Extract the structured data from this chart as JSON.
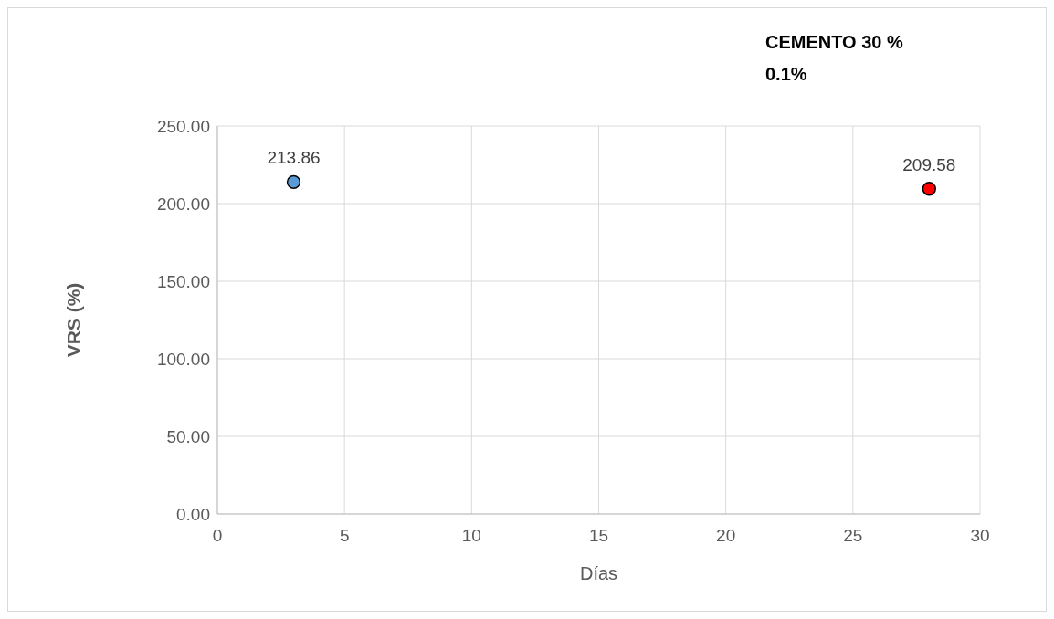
{
  "chart_data": {
    "type": "scatter",
    "title": "CEMENTO 30 %",
    "subtitle": "0.1%",
    "xlabel": "Días",
    "ylabel": "VRS (%)",
    "series": [
      {
        "color": "#5b9bd5",
        "x": [
          3
        ],
        "values": [
          213.86
        ]
      },
      {
        "color": "#ff0000",
        "x": [
          28
        ],
        "values": [
          209.58
        ]
      }
    ],
    "xlim": [
      0,
      30
    ],
    "xticks": [
      0,
      5,
      10,
      15,
      20,
      25,
      30
    ],
    "ylim": [
      0,
      250
    ],
    "yticks": [
      {
        "value": 0,
        "label": "0.00"
      },
      {
        "value": 50,
        "label": "50.00"
      },
      {
        "value": 100,
        "label": "100.00"
      },
      {
        "value": 150,
        "label": "150.00"
      },
      {
        "value": 200,
        "label": "200.00"
      },
      {
        "value": 250,
        "label": "250.00"
      }
    ],
    "grid": true,
    "marker": "circle",
    "data_labels": true
  }
}
